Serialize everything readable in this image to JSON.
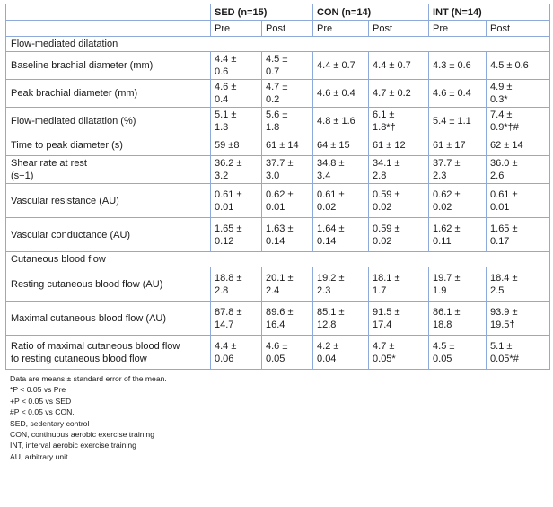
{
  "header": {
    "groups": [
      "SED (n=15)",
      "CON (n=14)",
      "INT  (N=14)"
    ],
    "subheaders": [
      "Pre",
      "Post",
      "Pre",
      "Post",
      "Pre",
      "Post"
    ]
  },
  "sections": [
    {
      "title": "Flow-mediated dilatation",
      "rows": [
        {
          "label": "Baseline brachial diameter (mm)",
          "cells": [
            "4.4 ±\n0.6",
            "4.5 ±\n0.7",
            "4.4 ± 0.7",
            "4.4 ± 0.7",
            "4.3 ± 0.6",
            "4.5 ± 0.6"
          ]
        },
        {
          "label": "Peak brachial diameter (mm)",
          "cells": [
            "4.6 ±\n0.4",
            "4.7 ±\n0.2",
            "4.6 ± 0.4",
            "4.7 ± 0.2",
            "4.6 ± 0.4",
            "4.9 ±\n0.3*"
          ]
        },
        {
          "label": "Flow-mediated dilatation (%)",
          "cells": [
            "5.1 ±\n1.3",
            "5.6 ±\n1.8",
            "4.8 ± 1.6",
            "6.1 ±\n1.8*†",
            "5.4 ± 1.1",
            "7.4 ±\n0.9*†#"
          ]
        },
        {
          "label": "Time to peak diameter (s)",
          "cells": [
            "59 ±8",
            "61 ± 14",
            "64 ± 15",
            "61 ± 12",
            "61 ± 17",
            "62 ± 14"
          ]
        },
        {
          "label": "Shear rate at rest\n(s−1)",
          "cells": [
            "36.2 ±\n3.2",
            "37.7 ±\n3.0",
            "34.8 ±\n3.4",
            "34.1 ±\n2.8",
            "37.7 ±\n2.3",
            "36.0 ±\n2.6"
          ]
        },
        {
          "label": "Vascular resistance (AU)",
          "cells": [
            "0.61 ±\n0.01",
            "0.62 ±\n0.01",
            "0.61 ±\n0.02",
            "0.59 ±\n0.02",
            "0.62 ±\n0.02",
            "0.61 ±\n0.01"
          ]
        },
        {
          "label": "Vascular conductance (AU)",
          "cells": [
            "1.65 ±\n0.12",
            "1.63 ±\n0.14",
            "1.64 ±\n0.14",
            "0.59 ±\n0.02",
            "1.62 ±\n0.11",
            "1.65 ±\n0.17"
          ]
        }
      ]
    },
    {
      "title": "Cutaneous blood flow",
      "rows": [
        {
          "label": "Resting cutaneous blood flow (AU)",
          "cells": [
            "18.8 ±\n2.8",
            "20.1 ±\n2.4",
            "19.2 ±\n2.3",
            "18.1 ±\n1.7",
            "19.7 ±\n1.9",
            "18.4 ±\n2.5"
          ]
        },
        {
          "label": "Maximal cutaneous blood flow (AU)",
          "cells": [
            "87.8 ±\n14.7",
            "89.6 ±\n16.4",
            "85.1 ±\n12.8",
            "91.5 ±\n17.4",
            "86.1 ±\n18.8",
            "93.9 ±\n19.5†"
          ]
        },
        {
          "label": "Ratio of maximal cutaneous blood flow\nto resting cutaneous blood flow",
          "cells": [
            "4.4 ±\n0.06",
            "4.6 ±\n0.05",
            "4.2 ±\n0.04",
            "4.7 ±\n0.05*",
            "4.5 ±\n0.05",
            "5.1 ±\n0.05*#"
          ]
        }
      ]
    }
  ],
  "notes": [
    "Data are means ± standard error of the mean.",
    "*P < 0.05 vs Pre",
    "+P < 0.05 vs SED",
    "#P < 0.05 vs CON.",
    "SED, sedentary control",
    "CON, continuous aerobic exercise training",
    "INT, interval aerobic exercise training",
    "AU, arbitrary unit."
  ]
}
